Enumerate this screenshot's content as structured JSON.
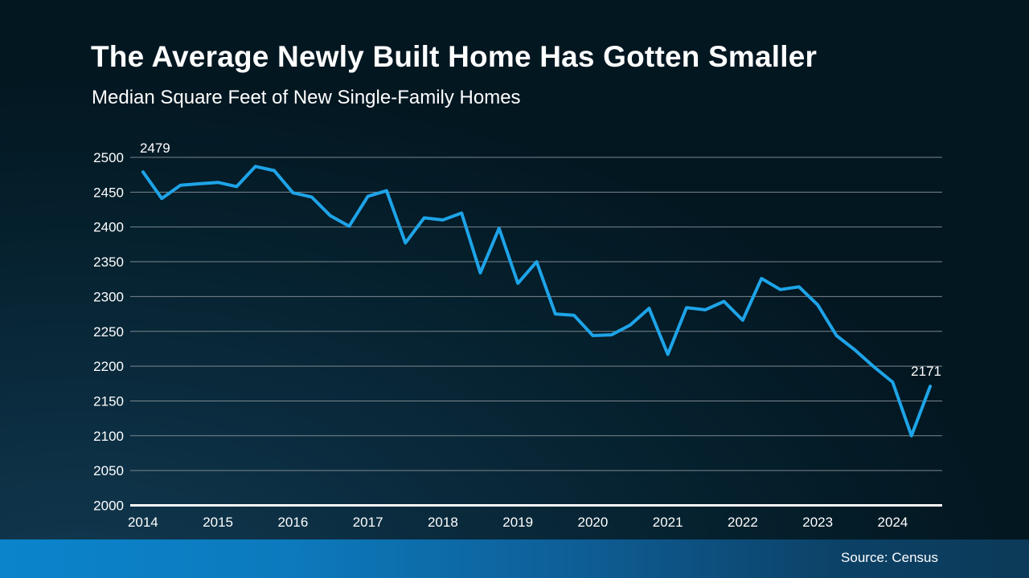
{
  "header": {
    "title": "The Average Newly Built Home Has Gotten Smaller",
    "subtitle": "Median Square Feet of New Single-Family Homes"
  },
  "footer": {
    "source": "Source: Census"
  },
  "colors": {
    "line": "#1ea4e8",
    "grid": "#7b878f",
    "axis": "#ffffff",
    "text": "#ffffff",
    "footer_bar_left": "#0b84cc",
    "footer_bar_right": "#0c3a58"
  },
  "chart_data": {
    "type": "line",
    "title": "The Average Newly Built Home Has Gotten Smaller",
    "subtitle": "Median Square Feet of New Single-Family Homes",
    "frequency": "quarterly",
    "x": [
      2014,
      2014.25,
      2014.5,
      2014.75,
      2015,
      2015.25,
      2015.5,
      2015.75,
      2016,
      2016.25,
      2016.5,
      2016.75,
      2017,
      2017.25,
      2017.5,
      2017.75,
      2018,
      2018.25,
      2018.5,
      2018.75,
      2019,
      2019.25,
      2019.5,
      2019.75,
      2020,
      2020.25,
      2020.5,
      2020.75,
      2021,
      2021.25,
      2021.5,
      2021.75,
      2022,
      2022.25,
      2022.5,
      2022.75,
      2023,
      2023.25,
      2023.5,
      2023.75,
      2024,
      2024.25,
      2024.5
    ],
    "values": [
      2479,
      2441,
      2460,
      2462,
      2464,
      2458,
      2487,
      2481,
      2449,
      2443,
      2416,
      2401,
      2444,
      2452,
      2377,
      2413,
      2410,
      2420,
      2334,
      2398,
      2319,
      2350,
      2275,
      2273,
      2244,
      2245,
      2259,
      2283,
      2217,
      2284,
      2281,
      2293,
      2266,
      2326,
      2310,
      2314,
      2288,
      2244,
      2223,
      2199,
      2177,
      2100,
      2171
    ],
    "y_ticks": [
      2000,
      2050,
      2100,
      2150,
      2200,
      2250,
      2300,
      2350,
      2400,
      2450,
      2500
    ],
    "x_tick_labels": [
      "2014",
      "2015",
      "2016",
      "2017",
      "2018",
      "2019",
      "2020",
      "2021",
      "2022",
      "2023",
      "2024"
    ],
    "ylim": [
      2000,
      2500
    ],
    "xlim": [
      2013.83,
      2024.66
    ],
    "grid": true,
    "legend": "none",
    "annotations": [
      {
        "index": 0,
        "label": "2479"
      },
      {
        "index": 42,
        "label": "2171"
      }
    ]
  }
}
